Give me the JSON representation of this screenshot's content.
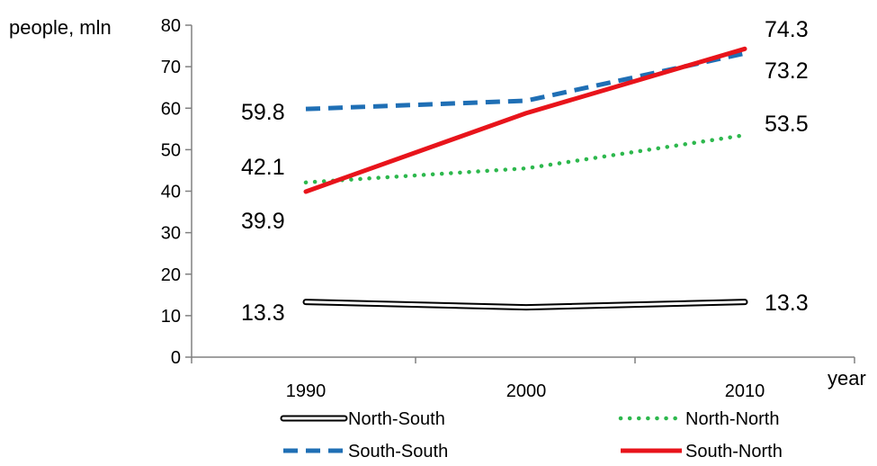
{
  "chart_data": {
    "type": "line",
    "title": "",
    "xlabel": "year",
    "ylabel": "people, mln",
    "x": [
      1990,
      2000,
      2010
    ],
    "ylim": [
      0,
      80
    ],
    "yticks": [
      0,
      10,
      20,
      30,
      40,
      50,
      60,
      70,
      80
    ],
    "grid": false,
    "legend_placement": "bottom",
    "series": [
      {
        "name": "North-South",
        "values": [
          13.3,
          12.0,
          13.3
        ],
        "style": "double",
        "color": "#000000",
        "labels": [
          "13.3",
          "",
          "13.3"
        ]
      },
      {
        "name": "North-North",
        "values": [
          42.1,
          45.5,
          53.5
        ],
        "style": "dotted",
        "color": "#2db84d",
        "labels": [
          "42.1",
          "",
          "53.5"
        ]
      },
      {
        "name": "South-South",
        "values": [
          59.8,
          61.8,
          73.2
        ],
        "style": "dashed",
        "color": "#1f6fb5",
        "labels": [
          "59.8",
          "",
          "73.2"
        ]
      },
      {
        "name": "South-North",
        "values": [
          39.9,
          58.8,
          74.3
        ],
        "style": "solid",
        "color": "#e8141b",
        "labels": [
          "39.9",
          "",
          "74.3"
        ]
      }
    ]
  }
}
